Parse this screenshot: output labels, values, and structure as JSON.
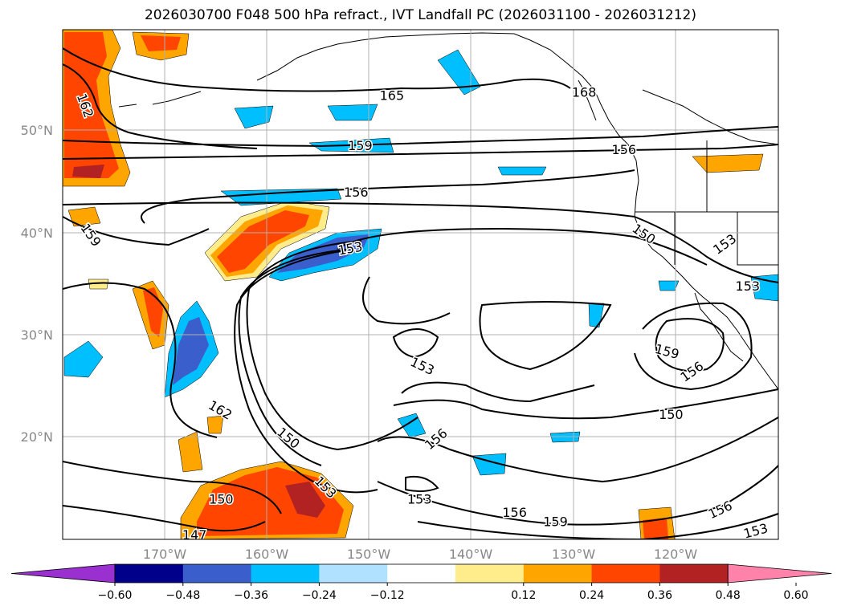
{
  "title": "2026030700 F048 500 hPa refract., IVT Landfall PC (2026031100 - 2026031212)",
  "map": {
    "lat_labels": [
      "50°N",
      "40°N",
      "30°N",
      "20°N"
    ],
    "lon_labels": [
      "170°W",
      "160°W",
      "150°W",
      "140°W",
      "130°W",
      "120°W"
    ],
    "contour_labels": [
      {
        "text": "162",
        "lon": -178.2,
        "lat": 52.8,
        "rot": 70
      },
      {
        "text": "165",
        "lon": -147.8,
        "lat": 53.5,
        "rot": 0
      },
      {
        "text": "168",
        "lon": -129.0,
        "lat": 53.8,
        "rot": 0
      },
      {
        "text": "159",
        "lon": -150.9,
        "lat": 48.6,
        "rot": 0
      },
      {
        "text": "156",
        "lon": -125.1,
        "lat": 48.2,
        "rot": 0
      },
      {
        "text": "156",
        "lon": -151.3,
        "lat": 44.0,
        "rot": 0
      },
      {
        "text": "159",
        "lon": -177.6,
        "lat": 40.0,
        "rot": 55
      },
      {
        "text": "153",
        "lon": -151.8,
        "lat": 38.5,
        "rot": -10
      },
      {
        "text": "150",
        "lon": -123.4,
        "lat": 40.0,
        "rot": 35
      },
      {
        "text": "153",
        "lon": -115.0,
        "lat": 39.0,
        "rot": -35
      },
      {
        "text": "153",
        "lon": -113.0,
        "lat": 34.8,
        "rot": 0
      },
      {
        "text": "153",
        "lon": -145.0,
        "lat": 27.0,
        "rot": 25
      },
      {
        "text": "159",
        "lon": -121.0,
        "lat": 28.4,
        "rot": 15
      },
      {
        "text": "156",
        "lon": -118.2,
        "lat": 26.5,
        "rot": -35
      },
      {
        "text": "162",
        "lon": -164.8,
        "lat": 22.7,
        "rot": 30
      },
      {
        "text": "150",
        "lon": -158.2,
        "lat": 20.0,
        "rot": 40
      },
      {
        "text": "156",
        "lon": -143.2,
        "lat": 19.9,
        "rot": -40
      },
      {
        "text": "150",
        "lon": -120.5,
        "lat": 22.2,
        "rot": 0
      },
      {
        "text": "153",
        "lon": -154.6,
        "lat": 15.2,
        "rot": 45
      },
      {
        "text": "150",
        "lon": -164.5,
        "lat": 13.9,
        "rot": 0
      },
      {
        "text": "153",
        "lon": -145.1,
        "lat": 13.9,
        "rot": 0
      },
      {
        "text": "156",
        "lon": -135.8,
        "lat": 12.6,
        "rot": 0
      },
      {
        "text": "159",
        "lon": -131.8,
        "lat": 11.7,
        "rot": 0
      },
      {
        "text": "147",
        "lon": -167.1,
        "lat": 10.4,
        "rot": 0
      },
      {
        "text": "156",
        "lon": -115.5,
        "lat": 12.9,
        "rot": -25
      },
      {
        "text": "153",
        "lon": -112.1,
        "lat": 10.8,
        "rot": -15
      }
    ]
  },
  "colorbar": {
    "tick_labels": [
      "−0.60",
      "−0.48",
      "−0.36",
      "−0.24",
      "−0.12",
      "0.12",
      "0.24",
      "0.36",
      "0.48",
      "0.60"
    ],
    "colors": [
      "#9b30d0",
      "#00008b",
      "#3a5fcd",
      "#00bfff",
      "#b0e2ff",
      "#ffffff",
      "#ffec8b",
      "#ffa500",
      "#ff4500",
      "#b22222",
      "#ff82ab"
    ]
  }
}
